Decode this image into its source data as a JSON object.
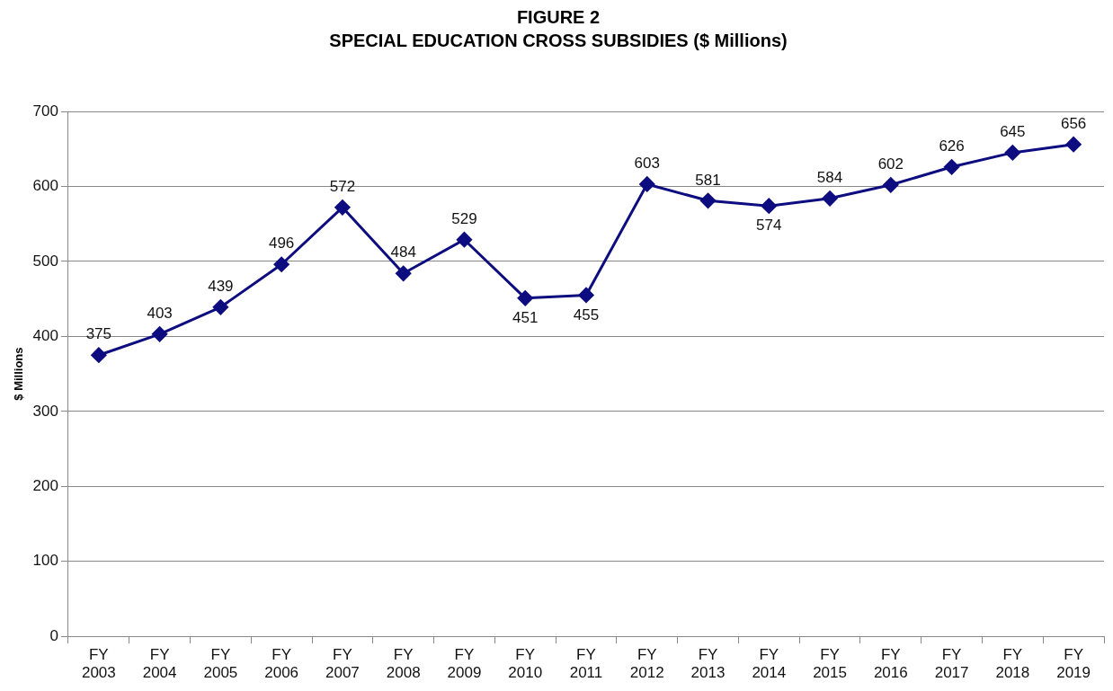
{
  "chart_data": {
    "type": "line",
    "title": "FIGURE 2",
    "subtitle": "SPECIAL EDUCATION CROSS SUBSIDIES ($ Millions)",
    "ylabel": "$ Millions",
    "categories": [
      "FY 2003",
      "FY 2004",
      "FY 2005",
      "FY 2006",
      "FY 2007",
      "FY 2008",
      "FY 2009",
      "FY 2010",
      "FY 2011",
      "FY 2012",
      "FY 2013",
      "FY 2014",
      "FY 2015",
      "FY 2016",
      "FY 2017",
      "FY 2018",
      "FY 2019"
    ],
    "series": [
      {
        "color": "#0d0d80",
        "values": [
          375,
          403,
          439,
          496,
          572,
          484,
          529,
          451,
          455,
          603,
          581,
          574,
          584,
          602,
          626,
          645,
          656
        ]
      }
    ],
    "ylim": [
      0,
      700
    ],
    "yticks": [
      0,
      100,
      200,
      300,
      400,
      500,
      600,
      700
    ],
    "grid": "y",
    "legend": false,
    "marker": "diamond",
    "line_style": "solid",
    "data_labels": true
  }
}
